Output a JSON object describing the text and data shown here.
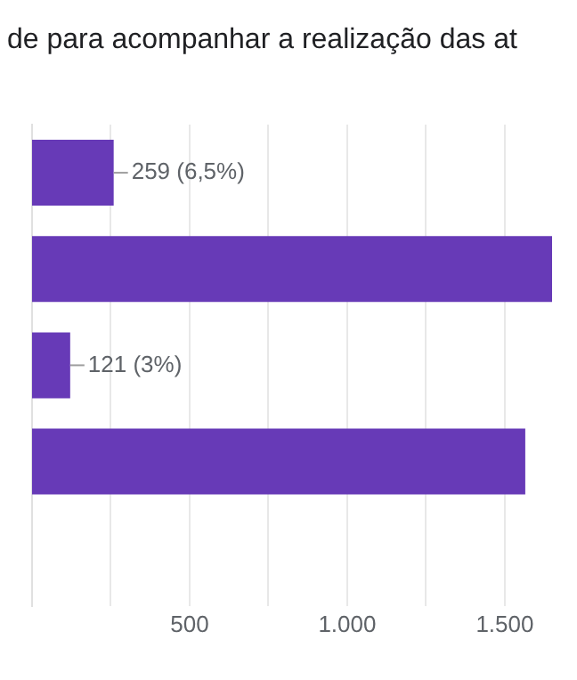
{
  "chart_data": {
    "type": "bar",
    "orientation": "horizontal",
    "title": "de para acompanhar a realização das at",
    "categories": [
      null,
      null,
      null,
      null,
      null
    ],
    "values": [
      259,
      1650,
      121,
      1565,
      null
    ],
    "value_labels": [
      "259 (6,5%)",
      null,
      "121 (3%)",
      null,
      null
    ],
    "color": "#673ab7",
    "xlim": [
      0,
      1650
    ],
    "xticks": [
      {
        "value": 250,
        "label": null
      },
      500,
      {
        "value": 750,
        "label": null
      },
      {
        "value": 1000,
        "label": "1.000"
      },
      {
        "value": 1250,
        "label": null
      },
      {
        "value": 1500,
        "label": "1.500"
      }
    ],
    "grid": "x",
    "legend": false
  }
}
